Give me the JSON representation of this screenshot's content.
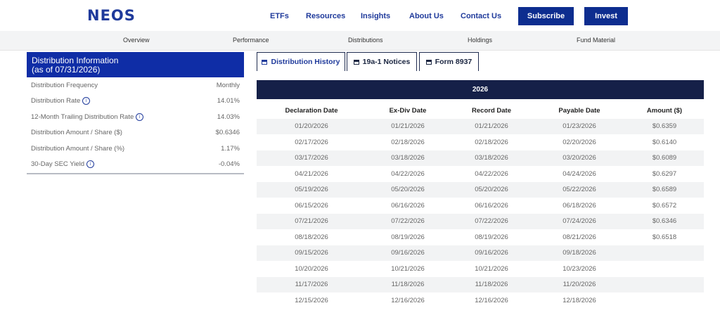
{
  "header": {
    "logo": "NEOS",
    "nav": [
      "ETFs",
      "Resources",
      "Insights",
      "About Us",
      "Contact Us"
    ],
    "subscribe_label": "Subscribe",
    "invest_label": "Invest"
  },
  "subnav": [
    "Overview",
    "Performance",
    "Distributions",
    "Holdings",
    "Fund Material"
  ],
  "info": {
    "title_line1": "Distribution Information",
    "title_line2": "(as of 07/31/2026)",
    "rows": [
      {
        "label": "Distribution Frequency",
        "value": "Monthly",
        "info_icon": false
      },
      {
        "label": "Distribution Rate",
        "value": "14.01%",
        "info_icon": true
      },
      {
        "label": "12-Month Trailing Distribution Rate",
        "value": "14.03%",
        "info_icon": true
      },
      {
        "label": "Distribution Amount / Share ($)",
        "value": "$0.6346",
        "info_icon": false
      },
      {
        "label": "Distribution Amount / Share (%)",
        "value": "1.17%",
        "info_icon": false
      },
      {
        "label": "30-Day SEC Yield",
        "value": "-0.04%",
        "info_icon": true
      }
    ]
  },
  "tabs": [
    {
      "label": "Distribution History",
      "active": true
    },
    {
      "label": "19a-1 Notices",
      "active": false
    },
    {
      "label": "Form 8937",
      "active": false
    }
  ],
  "table": {
    "year": "2026",
    "columns": [
      "Declaration Date",
      "Ex-Div Date",
      "Record Date",
      "Payable Date",
      "Amount ($)"
    ],
    "rows": [
      [
        "01/20/2026",
        "01/21/2026",
        "01/21/2026",
        "01/23/2026",
        "$0.6359"
      ],
      [
        "02/17/2026",
        "02/18/2026",
        "02/18/2026",
        "02/20/2026",
        "$0.6140"
      ],
      [
        "03/17/2026",
        "03/18/2026",
        "03/18/2026",
        "03/20/2026",
        "$0.6089"
      ],
      [
        "04/21/2026",
        "04/22/2026",
        "04/22/2026",
        "04/24/2026",
        "$0.6297"
      ],
      [
        "05/19/2026",
        "05/20/2026",
        "05/20/2026",
        "05/22/2026",
        "$0.6589"
      ],
      [
        "06/15/2026",
        "06/16/2026",
        "06/16/2026",
        "06/18/2026",
        "$0.6572"
      ],
      [
        "07/21/2026",
        "07/22/2026",
        "07/22/2026",
        "07/24/2026",
        "$0.6346"
      ],
      [
        "08/18/2026",
        "08/19/2026",
        "08/19/2026",
        "08/21/2026",
        "$0.6518"
      ],
      [
        "09/15/2026",
        "09/16/2026",
        "09/16/2026",
        "09/18/2026",
        ""
      ],
      [
        "10/20/2026",
        "10/21/2026",
        "10/21/2026",
        "10/23/2026",
        ""
      ],
      [
        "11/17/2026",
        "11/18/2026",
        "11/18/2026",
        "11/20/2026",
        ""
      ],
      [
        "12/15/2026",
        "12/16/2026",
        "12/16/2026",
        "12/18/2026",
        ""
      ]
    ]
  },
  "colors": {
    "brand_blue": "#1f3a9b",
    "button_blue": "#0d2d8f",
    "info_header_blue": "#0f2da6",
    "table_header_navy": "#152048"
  }
}
